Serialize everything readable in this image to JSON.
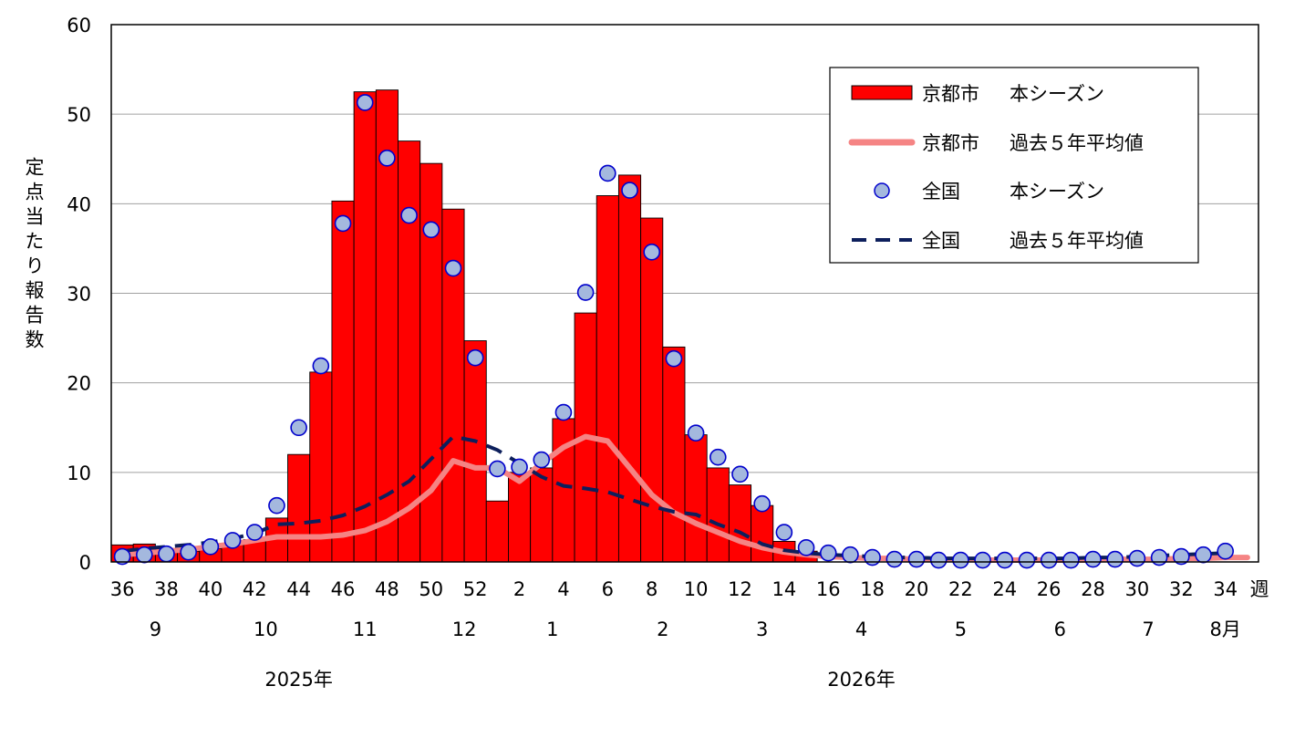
{
  "chart_data": {
    "type": "bar",
    "ylabel": "定点当たり報告数",
    "ylim": [
      0,
      60
    ],
    "y_ticks": [
      "0",
      "10",
      "20",
      "30",
      "40",
      "50",
      "60"
    ],
    "week_unit": "週",
    "grid": "horizontal",
    "legend_position": "top-right",
    "weeks": [
      36,
      37,
      38,
      39,
      40,
      41,
      42,
      43,
      44,
      45,
      46,
      47,
      48,
      49,
      50,
      51,
      52,
      1,
      2,
      3,
      4,
      5,
      6,
      7,
      8,
      9,
      10,
      11,
      12,
      13,
      14,
      15,
      16,
      17,
      18,
      19,
      20,
      21,
      22,
      23,
      24,
      25,
      26,
      27,
      28,
      29,
      30,
      31,
      32,
      33,
      34,
      35
    ],
    "week_tick_labels": [
      "36",
      "38",
      "40",
      "42",
      "44",
      "46",
      "48",
      "50",
      "52",
      "2",
      "4",
      "6",
      "8",
      "10",
      "12",
      "14",
      "16",
      "18",
      "20",
      "22",
      "24",
      "26",
      "28",
      "30",
      "32",
      "34"
    ],
    "month_labels": [
      "9",
      "10",
      "11",
      "12",
      "1",
      "2",
      "3",
      "4",
      "5",
      "6",
      "7",
      "8月"
    ],
    "year_labels": [
      "2025年",
      "2026年"
    ],
    "series": [
      {
        "name": "京都市 本シーズン",
        "kind": "bar",
        "color": "#ff0000",
        "values": [
          1.9,
          2.0,
          1.5,
          1.2,
          1.5,
          2.0,
          2.5,
          4.9,
          12.0,
          21.2,
          40.3,
          52.5,
          52.7,
          47.0,
          44.5,
          39.4,
          24.7,
          6.8,
          10.0,
          10.5,
          16.0,
          27.8,
          40.9,
          43.2,
          38.4,
          24.0,
          14.2,
          10.5,
          8.6,
          6.3,
          2.3,
          1.2
        ]
      },
      {
        "name": "京都市 過去５年平均値",
        "kind": "line",
        "color": "#f58484",
        "values": [
          0.8,
          1.0,
          1.2,
          1.4,
          1.7,
          2.0,
          2.4,
          2.8,
          2.8,
          2.8,
          3.0,
          3.5,
          4.5,
          6.0,
          8.0,
          11.3,
          10.5,
          10.5,
          9.0,
          11.0,
          12.8,
          14.0,
          13.5,
          10.5,
          7.5,
          5.5,
          4.3,
          3.3,
          2.3,
          1.6,
          1.1,
          0.8,
          0.6,
          0.5,
          0.4,
          0.4,
          0.3,
          0.3,
          0.3,
          0.2,
          0.2,
          0.2,
          0.2,
          0.2,
          0.2,
          0.3,
          0.3,
          0.3,
          0.4,
          0.4,
          0.5,
          0.5
        ]
      },
      {
        "name": "全国 本シーズン",
        "kind": "scatter",
        "color": "#a4b8de",
        "values": [
          0.6,
          0.8,
          0.9,
          1.1,
          1.7,
          2.4,
          3.3,
          6.3,
          15.0,
          21.9,
          37.8,
          51.3,
          45.1,
          38.7,
          37.1,
          32.8,
          22.8,
          10.4,
          10.6,
          11.4,
          16.7,
          30.1,
          43.4,
          41.5,
          34.6,
          22.7,
          14.4,
          11.7,
          9.8,
          6.5,
          3.3,
          1.6,
          1.0,
          0.8,
          0.5,
          0.3,
          0.3,
          0.2,
          0.2,
          0.2,
          0.2,
          0.2,
          0.2,
          0.2,
          0.3,
          0.3,
          0.4,
          0.5,
          0.6,
          0.8,
          1.2
        ]
      },
      {
        "name": "全国 過去５年平均値",
        "kind": "dashed-line",
        "color": "#0d1f5c",
        "values": [
          1.2,
          1.5,
          1.7,
          1.9,
          2.2,
          2.6,
          3.2,
          4.2,
          4.3,
          4.6,
          5.2,
          6.2,
          7.5,
          9.0,
          11.5,
          14.0,
          13.5,
          12.5,
          11.0,
          9.5,
          8.5,
          8.2,
          7.8,
          7.0,
          6.2,
          5.6,
          5.3,
          4.2,
          3.3,
          2.0,
          1.3,
          1.0,
          0.8,
          0.7,
          0.6,
          0.5,
          0.5,
          0.4,
          0.4,
          0.4,
          0.4,
          0.4,
          0.4,
          0.4,
          0.5,
          0.5,
          0.6,
          0.7,
          0.8,
          0.9,
          1.0
        ]
      }
    ]
  },
  "legend": {
    "entries": [
      {
        "prefix": "京都市",
        "suffix": "本シーズン"
      },
      {
        "prefix": "京都市",
        "suffix": "過去５年平均値"
      },
      {
        "prefix": "全国",
        "suffix": "本シーズン"
      },
      {
        "prefix": "全国",
        "suffix": "過去５年平均値"
      }
    ]
  }
}
